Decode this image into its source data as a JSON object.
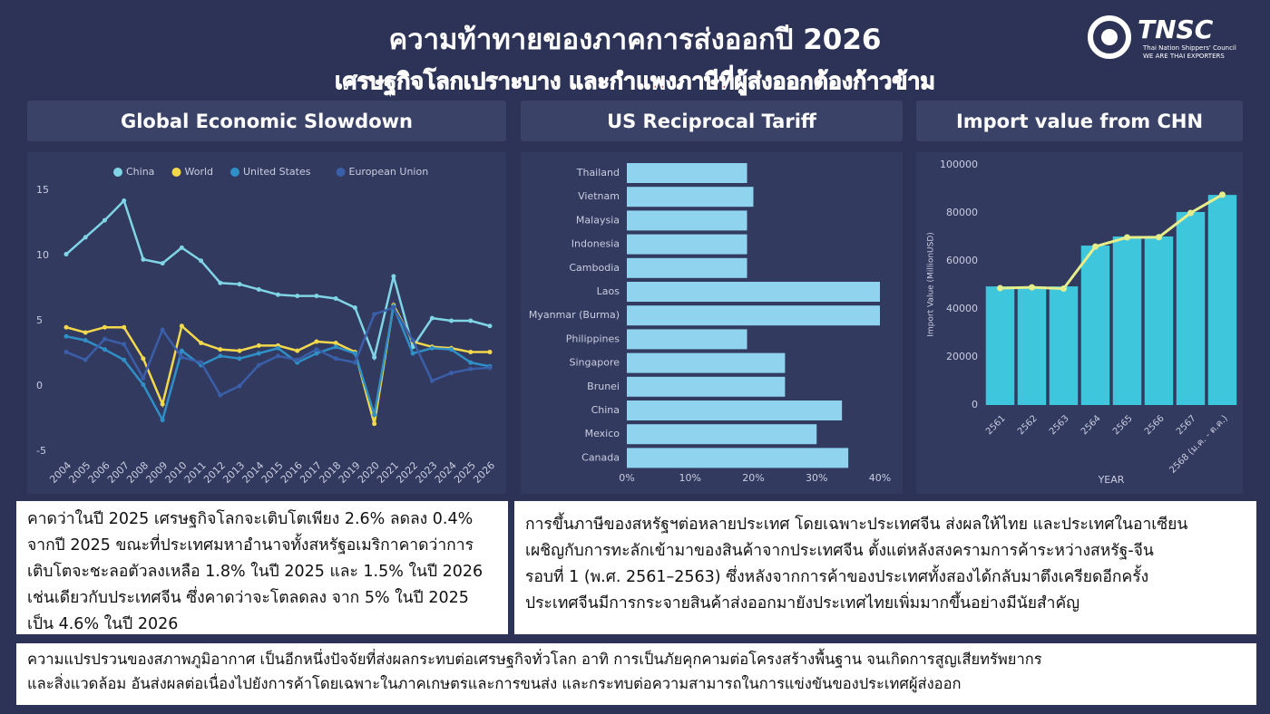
{
  "header": {
    "title": "ความท้าทายของภาคการส่งออกปี 2026",
    "subtitle_part1": "เศรษฐกิจโลกเปราะบาง",
    "subtitle_part2": "และกำแพงภาษีที่ผู้ส่งออกต้องก้าวข้าม"
  },
  "logo": {
    "name": "TNSC",
    "org": "Thai Nation Shippers' Council",
    "tagline": "WE ARE THAI EXPORTERS"
  },
  "chart_data": [
    {
      "type": "line",
      "title": "Global Economic Slowdown",
      "legend": "top",
      "categories": [
        "2004",
        "2005",
        "2006",
        "2007",
        "2008",
        "2009",
        "2010",
        "2011",
        "2012",
        "2013",
        "2014",
        "2015",
        "2016",
        "2017",
        "2018",
        "2019",
        "2020",
        "2021",
        "2022",
        "2023",
        "2024",
        "2025",
        "2026"
      ],
      "ylim": [
        -5,
        15
      ],
      "yticks": [
        -5,
        0,
        5,
        10,
        15
      ],
      "series": [
        {
          "name": "China",
          "color": "#7fd4e6",
          "values": [
            10.1,
            11.4,
            12.7,
            14.2,
            9.7,
            9.4,
            10.6,
            9.6,
            7.9,
            7.8,
            7.4,
            7.0,
            6.9,
            6.9,
            6.7,
            6.0,
            2.2,
            8.4,
            3.0,
            5.2,
            5.0,
            5.0,
            4.6
          ]
        },
        {
          "name": "World",
          "color": "#f3d84c",
          "values": [
            4.5,
            4.1,
            4.5,
            4.5,
            2.1,
            -1.4,
            4.6,
            3.3,
            2.8,
            2.7,
            3.1,
            3.1,
            2.7,
            3.4,
            3.3,
            2.6,
            -2.9,
            6.2,
            3.4,
            3.0,
            2.9,
            2.6,
            2.6
          ]
        },
        {
          "name": "United States",
          "color": "#2f8fc7",
          "values": [
            3.8,
            3.5,
            2.8,
            2.0,
            0.1,
            -2.6,
            2.7,
            1.6,
            2.3,
            2.1,
            2.5,
            2.9,
            1.8,
            2.5,
            3.0,
            2.5,
            -2.2,
            6.1,
            2.5,
            2.9,
            2.8,
            1.8,
            1.5
          ]
        },
        {
          "name": "European Union",
          "color": "#3b5ea8",
          "values": [
            2.6,
            2.0,
            3.6,
            3.2,
            0.6,
            4.3,
            2.2,
            1.8,
            -0.7,
            0.0,
            1.6,
            2.3,
            2.0,
            2.8,
            2.1,
            1.8,
            5.5,
            6.0,
            3.5,
            0.4,
            1.0,
            1.3,
            1.4
          ]
        }
      ]
    },
    {
      "type": "hbar",
      "title": "US Reciprocal Tariff",
      "color": "#8fd3ee",
      "categories": [
        "Thailand",
        "Vietnam",
        "Malaysia",
        "Indonesia",
        "Cambodia",
        "Laos",
        "Myanmar (Burma)",
        "Philippines",
        "Singapore",
        "Brunei",
        "China",
        "Mexico",
        "Canada"
      ],
      "values": [
        19,
        20,
        19,
        19,
        19,
        40,
        40,
        19,
        25,
        25,
        34,
        30,
        35
      ],
      "xlim": [
        0,
        40
      ],
      "xticks": [
        {
          "value": 0,
          "label": "0%"
        },
        {
          "value": 10,
          "label": "10%"
        },
        {
          "value": 20,
          "label": "20%"
        },
        {
          "value": 30,
          "label": "30%"
        },
        {
          "value": 40,
          "label": "40%"
        }
      ]
    },
    {
      "type": "combo",
      "title": "Import value from CHN",
      "x_label": "YEAR",
      "y_label": "Import Value (MillionUSD)",
      "categories": [
        "2561",
        "2562",
        "2563",
        "2564",
        "2565",
        "2566",
        "2567",
        "2568 (ม.ค. - ต.ค.)"
      ],
      "ylim": [
        0,
        100000
      ],
      "yticks": [
        0,
        20000,
        40000,
        60000,
        80000,
        100000
      ],
      "series": [
        {
          "type": "bar",
          "color": "#3ec6dc",
          "values": [
            49400,
            49400,
            49400,
            66400,
            70200,
            70200,
            80400,
            87500
          ]
        },
        {
          "type": "line",
          "color": "#e6ee8c",
          "values": [
            48700,
            49000,
            48500,
            66000,
            69800,
            69900,
            80000,
            87600
          ]
        }
      ]
    }
  ],
  "notes": [
    {
      "lines": [
        "คาดว่าในปี 2025 เศรษฐกิจโลกจะเติบโตเพียง 2.6% ลดลง 0.4%",
        "จากปี 2025 ขณะที่ประเทศมหาอำนาจทั้งสหรัฐอเมริกาคาดว่าการ",
        "เติบโตจะชะลอตัวลงเหลือ 1.8% ในปี 2025 และ 1.5% ในปี 2026",
        "เช่นเดียวกับประเทศจีน ซึ่งคาดว่าจะโตลดลง จาก 5% ในปี 2025",
        "เป็น 4.6% ในปี 2026"
      ]
    },
    {
      "lines": [
        "การขึ้นภาษีของสหรัฐฯต่อหลายประเทศ โดยเฉพาะประเทศจีน ส่งผลให้ไทย และประเทศในอาเซียน",
        "เผชิญกับการทะลักเข้ามาของสินค้าจากประเทศจีน ตั้งแต่หลังสงครามการค้าระหว่างสหรัฐ-จีน",
        "รอบที่ 1 (พ.ศ. 2561–2563) ซึ่งหลังจากการค้าของประเทศทั้งสองได้กลับมาตึงเครียดอีกครั้ง",
        "ประเทศจีนมีการกระจายสินค้าส่งออกมายังประเทศไทยเพิ่มมากขึ้นอย่างมีนัยสำคัญ"
      ]
    },
    {
      "lines": [
        "ความแปรปรวนของสภาพภูมิอากาศ เป็นอีกหนึ่งปัจจัยที่ส่งผลกระทบต่อเศรษฐกิจทั่วโลก อาทิ การเป็นภัยคุกคามต่อโครงสร้างพื้นฐาน จนเกิดการสูญเสียทรัพยากร",
        "และสิ่งแวดล้อม อันส่งผลต่อเนื่องไปยังการค้าโดยเฉพาะในภาคเกษตรและการขนส่ง และกระทบต่อความสามารถในการแข่งขันของประเทศผู้ส่งออก"
      ]
    }
  ]
}
